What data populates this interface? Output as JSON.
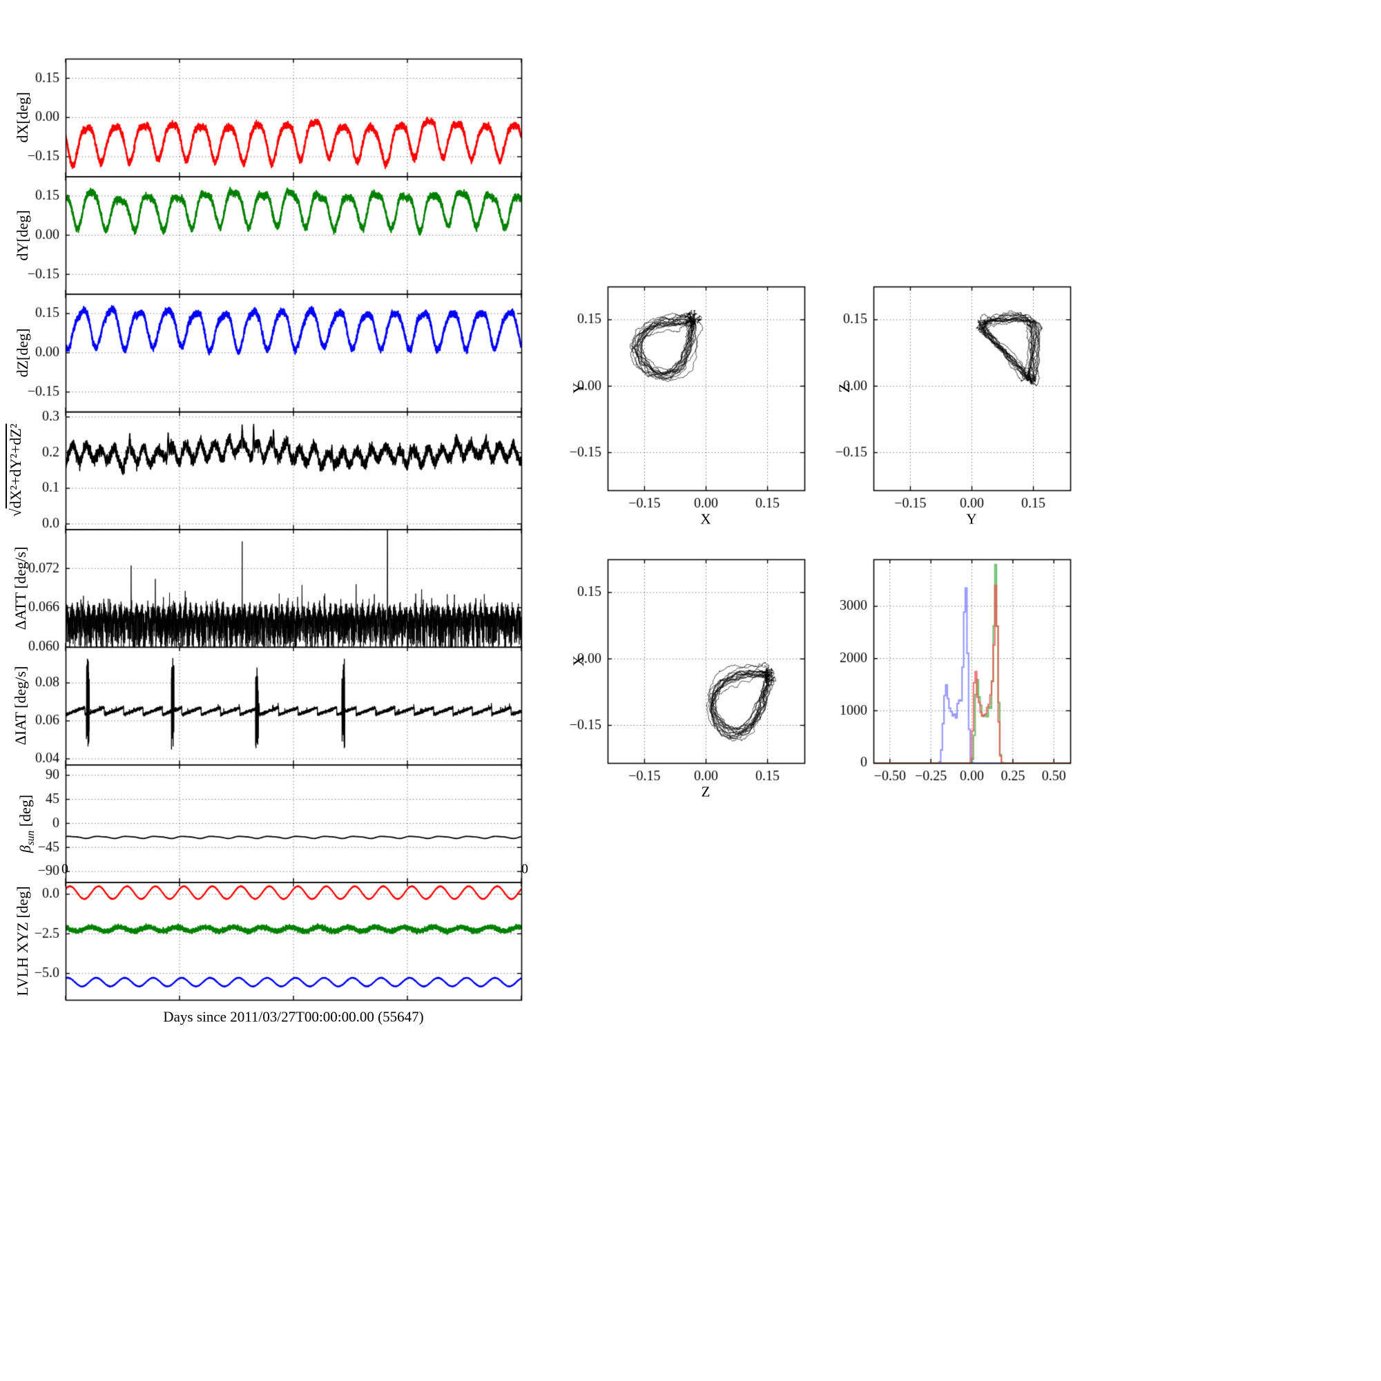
{
  "figure": {
    "background": "#ffffff",
    "text_color": "#000000"
  },
  "chart_data": {
    "type": "multi-panel",
    "grid": "dotted",
    "time_series": {
      "xlabel": "Days since 2011/03/27T00:00:00.00 (55647)",
      "xlim": [
        0,
        16
      ],
      "xticks": [
        0,
        4,
        8,
        12,
        16
      ],
      "xtick_labels": [],
      "edge_labels": [
        "0",
        "0"
      ],
      "n_samples": 6000,
      "panels": [
        {
          "id": "dX",
          "ylabel": "dX[deg]",
          "color": "#ff0000",
          "ylim": [
            -0.225,
            0.225
          ],
          "yticks": [
            0.15,
            0.0,
            -0.15
          ],
          "ytick_labels": [
            "0.15",
            "0.00",
            "−0.15"
          ],
          "signal": {
            "kind": "sine",
            "mean": -0.085,
            "amp": 0.068,
            "period_days": 1.0,
            "phase": 3.1416,
            "harm": 0.016,
            "noise": 0.006,
            "walk": 0.0013,
            "seed": 11
          }
        },
        {
          "id": "dY",
          "ylabel": "dY[deg]",
          "color": "#008000",
          "ylim": [
            -0.225,
            0.225
          ],
          "yticks": [
            0.15,
            0.0,
            -0.15
          ],
          "ytick_labels": [
            "0.15",
            "0.00",
            "−0.15"
          ],
          "signal": {
            "kind": "sine",
            "mean": 0.105,
            "amp": 0.062,
            "period_days": 1.0,
            "phase": 2.0944,
            "harm": 0.018,
            "noise": 0.006,
            "walk": 0.0013,
            "seed": 22
          }
        },
        {
          "id": "dZ",
          "ylabel": "dZ[deg]",
          "color": "#0000ff",
          "ylim": [
            -0.225,
            0.225
          ],
          "yticks": [
            0.15,
            0.0,
            -0.15
          ],
          "ytick_labels": [
            "0.15",
            "0.00",
            "−0.15"
          ],
          "signal": {
            "kind": "sine",
            "mean": 0.095,
            "amp": 0.07,
            "period_days": 1.0,
            "phase": 4.1888,
            "harm": 0.014,
            "noise": 0.006,
            "walk": 0.0013,
            "seed": 33
          }
        },
        {
          "id": "magnitude",
          "ylabel": "√dX²+dY²+dZ²",
          "ylabel_radical": "√",
          "ylabel_expr": "dX²+dY²+dZ²",
          "color": "#000000",
          "ylim": [
            -0.015,
            0.315
          ],
          "yticks": [
            0.3,
            0.2,
            0.1,
            0.0
          ],
          "ytick_labels": [
            "0.3",
            "0.2",
            "0.1",
            "0.0"
          ],
          "signal": {
            "kind": "derived_magnitude",
            "offset": 0.012,
            "noise": 0.004,
            "slow_amp": 0.008,
            "slow_period": 9.0,
            "spikes": [
              {
                "t": 2.25,
                "h": 0.045
              },
              {
                "t": 3.6,
                "h": 0.06
              },
              {
                "t": 6.2,
                "h": 0.05
              },
              {
                "t": 6.6,
                "h": 0.075
              },
              {
                "t": 7.3,
                "h": 0.05
              },
              {
                "t": 9.35,
                "h": 0.04
              },
              {
                "t": 12.1,
                "h": 0.025
              },
              {
                "t": 13.9,
                "h": 0.02
              }
            ],
            "seed": 44
          }
        },
        {
          "id": "dATT",
          "ylabel": "ΔATT [deg/s]",
          "color": "#000000",
          "ylim": [
            0.06,
            0.078
          ],
          "yticks": [
            0.072,
            0.066,
            0.06
          ],
          "ytick_labels": [
            "0.072",
            "0.066",
            "0.060"
          ],
          "signal": {
            "kind": "hash",
            "base": 0.0649,
            "noise": 0.0006,
            "dip_prob": 0.45,
            "dip_max": 0.0046,
            "spikes": [
              {
                "t": 2.3,
                "v": 0.0735
              },
              {
                "t": 3.15,
                "v": 0.0705
              },
              {
                "t": 4.2,
                "v": 0.0688
              },
              {
                "t": 6.2,
                "v": 0.0772
              },
              {
                "t": 7.5,
                "v": 0.0682
              },
              {
                "t": 8.3,
                "v": 0.0695
              },
              {
                "t": 9.1,
                "v": 0.0682
              },
              {
                "t": 10.2,
                "v": 0.07
              },
              {
                "t": 11.3,
                "v": 0.099
              },
              {
                "t": 12.5,
                "v": 0.069
              },
              {
                "t": 13.4,
                "v": 0.0682
              },
              {
                "t": 14.7,
                "v": 0.0686
              }
            ],
            "seed": 55
          }
        },
        {
          "id": "dIAT",
          "ylabel": "ΔIAT [deg/s]",
          "color": "#000000",
          "ylim": [
            0.037,
            0.099
          ],
          "yticks": [
            0.08,
            0.06,
            0.04
          ],
          "ytick_labels": [
            "0.08",
            "0.06",
            "0.04"
          ],
          "signal": {
            "kind": "sawtooth",
            "base": 0.0633,
            "rise": 0.0038,
            "period_days": 0.68,
            "noise": 0.0004,
            "glitch_times": [
              0.78,
              3.76,
              6.72,
              9.75
            ],
            "glitch_low": 0.045,
            "glitch_high": 0.093,
            "glitch_width": 0.1,
            "seed": 66
          }
        },
        {
          "id": "beta_sun",
          "ylabel": "β_sun [deg]",
          "ylabel_sym": "β",
          "ylabel_sub": "sun",
          "ylabel_unit": " [deg]",
          "color": "#000000",
          "ylim": [
            -110,
            110
          ],
          "yticks": [
            90,
            45,
            0,
            -45,
            -90
          ],
          "ytick_labels": [
            "90",
            "45",
            "0",
            "−45",
            "−90"
          ],
          "signal": {
            "kind": "sine",
            "mean": -26,
            "amp": 1.8,
            "period_days": 1.0,
            "phase": 0.4,
            "harm": 0.5,
            "noise": 0.1,
            "walk": 0,
            "seed": 77
          }
        },
        {
          "id": "lvlh",
          "ylabel": "LVLH XYZ [deg]",
          "ylim": [
            -6.67,
            0.76
          ],
          "yticks": [
            0.0,
            -2.5,
            -5.0
          ],
          "ytick_labels": [
            "0.0",
            "−2.5",
            "−5.0"
          ],
          "series": [
            {
              "name": "X",
              "color": "#ff0000",
              "mean": 0.1,
              "amp": 0.4,
              "period_days": 1.0,
              "phase": 0.6,
              "noise": 0.012,
              "seed": 88
            },
            {
              "name": "Y",
              "color": "#008000",
              "mean": -2.2,
              "amp": 0.13,
              "period_days": 1.0,
              "phase": 2.2,
              "noise": 0.07,
              "seed": 89
            },
            {
              "name": "Z",
              "color": "#0000ff",
              "mean": -5.55,
              "amp": 0.27,
              "period_days": 1.0,
              "phase": 1.1,
              "noise": 0.012,
              "seed": 90
            }
          ]
        }
      ]
    },
    "phase_plots": [
      {
        "id": "y-vs-x",
        "xlabel": "X",
        "ylabel": "Y",
        "x_source": "dX",
        "y_source": "dY",
        "color": "#000000",
        "xlim": [
          -0.24,
          0.24
        ],
        "ylim": [
          -0.235,
          0.225
        ],
        "xticks": [
          -0.15,
          0.0,
          0.15
        ],
        "xtick_labels": [
          "−0.15",
          "0.00",
          "0.15"
        ],
        "yticks": [
          0.15,
          0.0,
          -0.15
        ],
        "ytick_labels": [
          "0.15",
          "0.00",
          "−0.15"
        ]
      },
      {
        "id": "z-vs-y",
        "xlabel": "Y",
        "ylabel": "Z",
        "x_source": "dY",
        "y_source": "dZ",
        "color": "#000000",
        "xlim": [
          -0.24,
          0.24
        ],
        "ylim": [
          -0.235,
          0.225
        ],
        "xticks": [
          -0.15,
          0.0,
          0.15
        ],
        "xtick_labels": [
          "−0.15",
          "0.00",
          "0.15"
        ],
        "yticks": [
          0.15,
          0.0,
          -0.15
        ],
        "ytick_labels": [
          "0.15",
          "0.00",
          "−0.15"
        ]
      },
      {
        "id": "x-vs-z",
        "xlabel": "Z",
        "ylabel": "X",
        "x_source": "dZ",
        "y_source": "dX",
        "color": "#000000",
        "xlim": [
          -0.24,
          0.24
        ],
        "ylim": [
          -0.235,
          0.225
        ],
        "xticks": [
          -0.15,
          0.0,
          0.15
        ],
        "xtick_labels": [
          "−0.15",
          "0.00",
          "0.15"
        ],
        "yticks": [
          0.15,
          0.0,
          -0.15
        ],
        "ytick_labels": [
          "0.15",
          "0.00",
          "−0.15"
        ]
      }
    ],
    "histogram": {
      "xlim": [
        -0.6,
        0.6
      ],
      "ylim": [
        0,
        3900
      ],
      "xticks": [
        -0.5,
        -0.25,
        0.0,
        0.25,
        0.5
      ],
      "xtick_labels": [
        "−0.50",
        "−0.25",
        "0.00",
        "0.25",
        "0.50"
      ],
      "yticks": [
        0,
        1000,
        2000,
        3000
      ],
      "ytick_labels": [
        "0",
        "1000",
        "2000",
        "3000"
      ],
      "bin_width": 0.01,
      "series": [
        {
          "source": "dX",
          "color": "#7a7aff",
          "peak": 3350
        },
        {
          "source": "dY",
          "color": "#4daf4d",
          "peak": 3800
        },
        {
          "source": "dZ",
          "color": "#f05050",
          "peak": 3400
        }
      ]
    }
  }
}
